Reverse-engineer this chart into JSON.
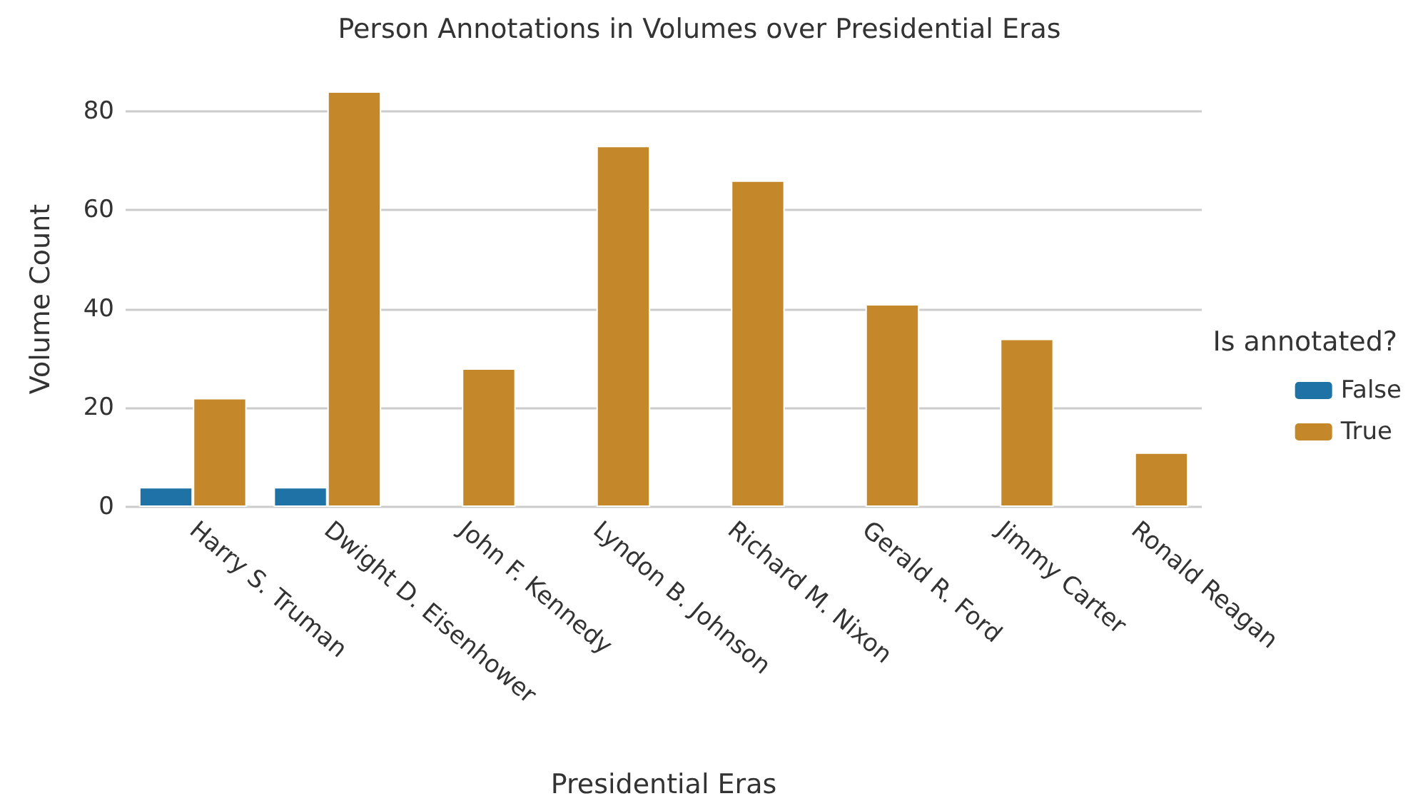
{
  "chart_data": {
    "type": "bar",
    "title": "Person Annotations in Volumes over Presidential Eras",
    "xlabel": "Presidential Eras",
    "ylabel": "Volume Count",
    "legend_title": "Is annotated?",
    "categories": [
      "Harry S. Truman",
      "Dwight D. Eisenhower",
      "John F. Kennedy",
      "Lyndon B. Johnson",
      "Richard M. Nixon",
      "Gerald R. Ford",
      "Jimmy Carter",
      "Ronald Reagan"
    ],
    "series": [
      {
        "name": "False",
        "color": "#1f72a6",
        "values": [
          4,
          4,
          null,
          null,
          null,
          null,
          null,
          null
        ]
      },
      {
        "name": "True",
        "color": "#c4882a",
        "values": [
          22,
          84,
          28,
          73,
          66,
          41,
          34,
          11
        ]
      }
    ],
    "ylim": [
      0,
      84
    ],
    "yticks": [
      0,
      20,
      40,
      60,
      80
    ],
    "grid": "y",
    "legend": "right"
  }
}
